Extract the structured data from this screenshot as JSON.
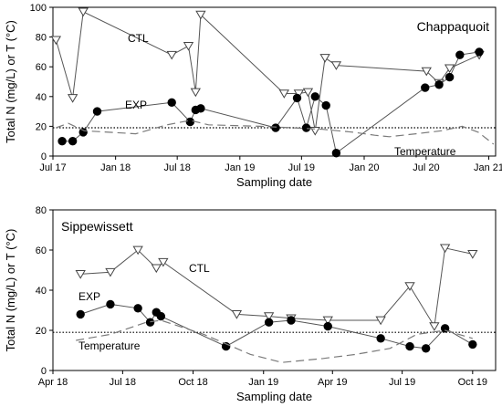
{
  "chart_data": [
    {
      "type": "line",
      "panel_title": "Chappaquoit",
      "xlabel": "Sampling date",
      "ylabel": "Total N (mg/L) or T (°C)",
      "x_ticks": [
        "Jul 17",
        "Jan 18",
        "Jul 18",
        "Jan 19",
        "Jul 19",
        "Jan 20",
        "Jul 20",
        "Jan 21"
      ],
      "x_tick_dates": [
        "2017-07-01",
        "2018-01-01",
        "2018-07-01",
        "2019-01-01",
        "2019-07-01",
        "2020-01-01",
        "2020-07-01",
        "2021-01-01"
      ],
      "xlim": [
        "2017-07-01",
        "2021-01-21"
      ],
      "ylim": [
        0,
        100
      ],
      "y_ticks": [
        0,
        20,
        40,
        60,
        80,
        100
      ],
      "reference_line": 19,
      "series": [
        {
          "name": "CTL",
          "marker": "triangle-down",
          "style": "solid",
          "points": [
            [
              "2017-07-10",
              78
            ],
            [
              "2017-08-28",
              39
            ],
            [
              "2017-09-28",
              97
            ],
            [
              "2018-06-15",
              68
            ],
            [
              "2018-08-03",
              74
            ],
            [
              "2018-08-24",
              43
            ],
            [
              "2018-09-08",
              95
            ],
            [
              "2019-05-11",
              42
            ],
            [
              "2019-06-23",
              42
            ],
            [
              "2019-07-20",
              43
            ],
            [
              "2019-08-10",
              17
            ],
            [
              "2019-09-08",
              66
            ],
            [
              "2019-10-11",
              61
            ],
            [
              "2020-07-02",
              57
            ],
            [
              "2020-08-08",
              49
            ],
            [
              "2020-09-08",
              59
            ],
            [
              "2020-12-04",
              68
            ]
          ]
        },
        {
          "name": "EXP",
          "marker": "circle",
          "style": "solid",
          "points": [
            [
              "2017-07-28",
              10
            ],
            [
              "2017-08-28",
              10
            ],
            [
              "2017-09-28",
              16
            ],
            [
              "2017-11-08",
              30
            ],
            [
              "2018-06-15",
              36
            ],
            [
              "2018-08-08",
              23
            ],
            [
              "2018-08-24",
              31
            ],
            [
              "2018-09-08",
              32
            ],
            [
              "2019-04-16",
              19
            ],
            [
              "2019-06-18",
              39
            ],
            [
              "2019-07-15",
              19
            ],
            [
              "2019-08-10",
              40
            ],
            [
              "2019-09-11",
              34
            ],
            [
              "2019-10-11",
              2
            ],
            [
              "2020-06-28",
              46
            ],
            [
              "2020-08-08",
              48
            ],
            [
              "2020-09-08",
              53
            ],
            [
              "2020-10-08",
              68
            ],
            [
              "2020-12-04",
              70
            ]
          ]
        },
        {
          "name": "Temperature",
          "marker": "none",
          "style": "dashed",
          "points": [
            [
              "2017-07-10",
              19
            ],
            [
              "2017-08-15",
              22
            ],
            [
              "2017-10-01",
              17
            ],
            [
              "2018-03-01",
              15
            ],
            [
              "2018-06-01",
              21
            ],
            [
              "2018-08-08",
              24
            ],
            [
              "2018-10-01",
              21
            ],
            [
              "2019-03-01",
              20
            ],
            [
              "2019-06-01",
              19
            ],
            [
              "2019-09-01",
              18
            ],
            [
              "2019-12-01",
              16
            ],
            [
              "2020-02-01",
              14
            ],
            [
              "2020-03-15",
              13
            ],
            [
              "2020-06-01",
              15
            ],
            [
              "2020-08-15",
              17
            ],
            [
              "2020-10-15",
              20
            ],
            [
              "2020-12-01",
              16
            ],
            [
              "2021-01-15",
              8
            ]
          ]
        }
      ]
    },
    {
      "type": "line",
      "panel_title": "Sippewissett",
      "xlabel": "Sampling date",
      "ylabel": "Total N (mg/L) or T (°C)",
      "x_ticks": [
        "Apr 18",
        "Jul 18",
        "Oct 18",
        "Jan 19",
        "Apr 19",
        "Jul 19",
        "Oct 19"
      ],
      "x_tick_dates": [
        "2018-04-01",
        "2018-07-01",
        "2018-10-01",
        "2019-01-01",
        "2019-04-01",
        "2019-07-01",
        "2019-10-01"
      ],
      "xlim": [
        "2018-04-01",
        "2019-10-31"
      ],
      "ylim": [
        0,
        80
      ],
      "y_ticks": [
        0,
        20,
        40,
        60,
        80
      ],
      "reference_line": 19,
      "series": [
        {
          "name": "CTL",
          "marker": "triangle-down",
          "style": "solid",
          "points": [
            [
              "2018-05-07",
              48
            ],
            [
              "2018-06-15",
              49
            ],
            [
              "2018-07-21",
              60
            ],
            [
              "2018-08-14",
              51
            ],
            [
              "2018-08-23",
              54
            ],
            [
              "2018-11-27",
              28
            ],
            [
              "2019-01-08",
              27
            ],
            [
              "2019-02-06",
              26
            ],
            [
              "2019-03-26",
              25
            ],
            [
              "2019-06-03",
              25
            ],
            [
              "2019-07-11",
              42
            ],
            [
              "2019-08-12",
              22
            ],
            [
              "2019-08-26",
              61
            ],
            [
              "2019-10-01",
              58
            ]
          ]
        },
        {
          "name": "EXP",
          "marker": "circle",
          "style": "solid",
          "points": [
            [
              "2018-05-07",
              28
            ],
            [
              "2018-06-15",
              33
            ],
            [
              "2018-07-21",
              31
            ],
            [
              "2018-08-06",
              24
            ],
            [
              "2018-08-14",
              29
            ],
            [
              "2018-08-20",
              27
            ],
            [
              "2018-11-13",
              12
            ],
            [
              "2019-01-08",
              24
            ],
            [
              "2019-02-06",
              25
            ],
            [
              "2019-03-26",
              22
            ],
            [
              "2019-06-03",
              16
            ],
            [
              "2019-07-11",
              12
            ],
            [
              "2019-08-01",
              11
            ],
            [
              "2019-08-26",
              21
            ],
            [
              "2019-10-01",
              13
            ]
          ]
        },
        {
          "name": "Temperature",
          "marker": "none",
          "style": "dashed",
          "points": [
            [
              "2018-05-01",
              15
            ],
            [
              "2018-06-15",
              18
            ],
            [
              "2018-08-01",
              24
            ],
            [
              "2018-08-20",
              25
            ],
            [
              "2018-10-15",
              18
            ],
            [
              "2018-12-15",
              8
            ],
            [
              "2019-01-25",
              4
            ],
            [
              "2019-03-20",
              6
            ],
            [
              "2019-05-01",
              8
            ],
            [
              "2019-06-15",
              11
            ],
            [
              "2019-07-20",
              18
            ],
            [
              "2019-08-26",
              20
            ],
            [
              "2019-10-01",
              16
            ]
          ]
        }
      ]
    }
  ]
}
